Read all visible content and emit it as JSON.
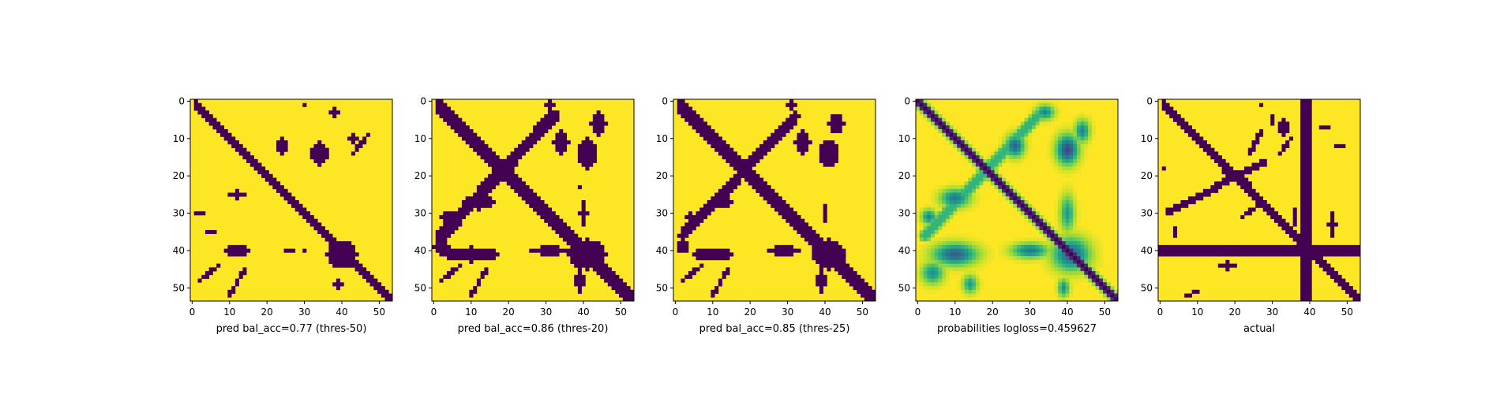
{
  "chart_data": [
    {
      "type": "heatmap",
      "xlabel": "pred bal_acc=0.77 (thres-50)",
      "xticks": [
        0,
        10,
        20,
        30,
        40,
        50
      ],
      "yticks": [
        0,
        10,
        20,
        30,
        40,
        50
      ],
      "xlim": [
        0,
        53
      ],
      "ylim": [
        53,
        0
      ],
      "size": 54,
      "colormap": "viridis",
      "binary": true,
      "features": {
        "diagonals": [
          {
            "type": "main",
            "start": 1,
            "end": 53,
            "width": 1.4
          }
        ],
        "blobs": [
          {
            "x": 34,
            "y": 14,
            "rx": 2.5,
            "ry": 3.0
          },
          {
            "x": 24,
            "y": 12,
            "rx": 1.5,
            "ry": 2.5
          },
          {
            "x": 38,
            "y": 3,
            "rx": 1.0,
            "ry": 1.5
          },
          {
            "x": 30,
            "y": 1,
            "rx": 0.6,
            "ry": 0.8
          },
          {
            "x": 43,
            "y": 10,
            "rx": 1.5,
            "ry": 1.2
          },
          {
            "x": 12,
            "y": 25,
            "rx": 2.0,
            "ry": 1.0
          },
          {
            "x": 2,
            "y": 30,
            "rx": 1.0,
            "ry": 0.8
          },
          {
            "x": 5,
            "y": 35,
            "rx": 1.0,
            "ry": 0.8
          },
          {
            "x": 12,
            "y": 40,
            "rx": 3.0,
            "ry": 1.5
          },
          {
            "x": 26,
            "y": 40,
            "rx": 1.5,
            "ry": 0.8
          },
          {
            "x": 30,
            "y": 40,
            "rx": 0.8,
            "ry": 0.8
          },
          {
            "x": 40,
            "y": 41,
            "rx": 4.0,
            "ry": 3.5
          },
          {
            "x": 39,
            "y": 49,
            "rx": 1.0,
            "ry": 1.0
          }
        ],
        "streaks": [
          {
            "x0": 47,
            "y0": 9,
            "x1": 43,
            "y1": 14,
            "w": 0.55
          },
          {
            "x0": 7,
            "y0": 44,
            "x1": 2,
            "y1": 48,
            "w": 0.55
          },
          {
            "x0": 14,
            "y0": 45,
            "x1": 10,
            "y1": 52,
            "w": 0.55
          }
        ]
      }
    },
    {
      "type": "heatmap",
      "xlabel": "pred bal_acc=0.86 (thres-20)",
      "xticks": [
        0,
        10,
        20,
        30,
        40,
        50
      ],
      "yticks": [
        0,
        10,
        20,
        30,
        40,
        50
      ],
      "xlim": [
        0,
        53
      ],
      "ylim": [
        53,
        0
      ],
      "size": 54,
      "colormap": "viridis",
      "binary": true,
      "features": {
        "diagonals": [
          {
            "type": "main",
            "start": 1,
            "end": 53,
            "width": 1.7
          },
          {
            "type": "anti",
            "x0": 2,
            "y0": 36,
            "x1": 32,
            "y1": 4,
            "width": 1.6
          }
        ],
        "blobs": [
          {
            "x": 41,
            "y": 14,
            "rx": 2.5,
            "ry": 4.0
          },
          {
            "x": 34,
            "y": 11,
            "rx": 2.0,
            "ry": 3.0
          },
          {
            "x": 44,
            "y": 6,
            "rx": 2.0,
            "ry": 3.0
          },
          {
            "x": 31,
            "y": 1,
            "rx": 1.2,
            "ry": 1.2
          },
          {
            "x": 12,
            "y": 27,
            "rx": 4.0,
            "ry": 2.0
          },
          {
            "x": 4,
            "y": 31,
            "rx": 2.0,
            "ry": 1.5
          },
          {
            "x": 10,
            "y": 41,
            "rx": 7.0,
            "ry": 2.0
          },
          {
            "x": 2,
            "y": 39,
            "rx": 2.0,
            "ry": 2.0
          },
          {
            "x": 31,
            "y": 40,
            "rx": 5.0,
            "ry": 1.2
          },
          {
            "x": 41,
            "y": 41,
            "rx": 5.0,
            "ry": 4.0
          },
          {
            "x": 39,
            "y": 48,
            "rx": 1.2,
            "ry": 3.0
          },
          {
            "x": 40,
            "y": 30,
            "rx": 1.0,
            "ry": 3.0
          },
          {
            "x": 39,
            "y": 23,
            "rx": 0.6,
            "ry": 0.6
          }
        ],
        "streaks": [
          {
            "x0": 14,
            "y0": 45,
            "x1": 10,
            "y1": 52,
            "w": 0.6
          },
          {
            "x0": 7,
            "y0": 44,
            "x1": 2,
            "y1": 48,
            "w": 0.6
          }
        ]
      }
    },
    {
      "type": "heatmap",
      "xlabel": "pred bal_acc=0.85 (thres-25)",
      "xticks": [
        0,
        10,
        20,
        30,
        40,
        50
      ],
      "yticks": [
        0,
        10,
        20,
        30,
        40,
        50
      ],
      "xlim": [
        0,
        53
      ],
      "ylim": [
        53,
        0
      ],
      "size": 54,
      "colormap": "viridis",
      "binary": true,
      "features": {
        "diagonals": [
          {
            "type": "main",
            "start": 1,
            "end": 53,
            "width": 1.6
          },
          {
            "type": "anti",
            "x0": 2,
            "y0": 36,
            "x1": 32,
            "y1": 4,
            "width": 1.4
          }
        ],
        "blobs": [
          {
            "x": 41,
            "y": 14,
            "rx": 2.5,
            "ry": 3.5
          },
          {
            "x": 34,
            "y": 11,
            "rx": 2.0,
            "ry": 3.0
          },
          {
            "x": 43,
            "y": 6,
            "rx": 2.0,
            "ry": 2.5
          },
          {
            "x": 31,
            "y": 1,
            "rx": 1.0,
            "ry": 1.0
          },
          {
            "x": 12,
            "y": 27,
            "rx": 3.5,
            "ry": 1.5
          },
          {
            "x": 4,
            "y": 31,
            "rx": 1.5,
            "ry": 1.2
          },
          {
            "x": 10,
            "y": 41,
            "rx": 5.0,
            "ry": 1.8
          },
          {
            "x": 2,
            "y": 39,
            "rx": 1.5,
            "ry": 1.5
          },
          {
            "x": 29,
            "y": 40,
            "rx": 4.0,
            "ry": 1.2
          },
          {
            "x": 41,
            "y": 41,
            "rx": 4.5,
            "ry": 4.0
          },
          {
            "x": 39,
            "y": 48,
            "rx": 1.2,
            "ry": 3.0
          },
          {
            "x": 40,
            "y": 30,
            "rx": 0.8,
            "ry": 2.5
          }
        ],
        "streaks": [
          {
            "x0": 14,
            "y0": 45,
            "x1": 10,
            "y1": 52,
            "w": 0.6
          },
          {
            "x0": 7,
            "y0": 44,
            "x1": 2,
            "y1": 48,
            "w": 0.6
          }
        ]
      }
    },
    {
      "type": "heatmap",
      "xlabel": "probabilities logloss=0.459627",
      "xticks": [
        0,
        10,
        20,
        30,
        40,
        50
      ],
      "yticks": [
        0,
        10,
        20,
        30,
        40,
        50
      ],
      "xlim": [
        0,
        53
      ],
      "ylim": [
        53,
        0
      ],
      "size": 54,
      "colormap": "viridis",
      "binary": false,
      "features": {
        "diagonals": [
          {
            "type": "main",
            "start": 0,
            "end": 53,
            "width": 1.2,
            "strength": 1.0
          },
          {
            "type": "anti",
            "x0": 2,
            "y0": 36,
            "x1": 32,
            "y1": 4,
            "width": 1.6,
            "strength": 0.35
          }
        ],
        "blobs": [
          {
            "x": 40,
            "y": 13,
            "rx": 3.0,
            "ry": 4.0,
            "strength": 0.8
          },
          {
            "x": 26,
            "y": 12,
            "rx": 2.5,
            "ry": 3.0,
            "strength": 0.7
          },
          {
            "x": 34,
            "y": 3,
            "rx": 2.5,
            "ry": 2.0,
            "strength": 0.55
          },
          {
            "x": 44,
            "y": 8,
            "rx": 2.0,
            "ry": 3.0,
            "strength": 0.55
          },
          {
            "x": 10,
            "y": 26,
            "rx": 4.0,
            "ry": 2.5,
            "strength": 0.6
          },
          {
            "x": 3,
            "y": 31,
            "rx": 2.0,
            "ry": 2.0,
            "strength": 0.55
          },
          {
            "x": 10,
            "y": 41,
            "rx": 6.0,
            "ry": 3.0,
            "strength": 0.7
          },
          {
            "x": 4,
            "y": 46,
            "rx": 3.0,
            "ry": 3.0,
            "strength": 0.5
          },
          {
            "x": 30,
            "y": 40,
            "rx": 5.0,
            "ry": 2.0,
            "strength": 0.6
          },
          {
            "x": 41,
            "y": 41,
            "rx": 5.0,
            "ry": 4.5,
            "strength": 0.7
          },
          {
            "x": 40,
            "y": 30,
            "rx": 2.0,
            "ry": 5.0,
            "strength": 0.45
          },
          {
            "x": 39,
            "y": 50,
            "rx": 1.5,
            "ry": 2.5,
            "strength": 0.5
          },
          {
            "x": 14,
            "y": 49,
            "rx": 2.0,
            "ry": 2.5,
            "strength": 0.45
          }
        ],
        "streaks": []
      }
    },
    {
      "type": "heatmap",
      "xlabel": "actual",
      "xticks": [
        0,
        10,
        20,
        30,
        40,
        50
      ],
      "yticks": [
        0,
        10,
        20,
        30,
        40,
        50
      ],
      "xlim": [
        0,
        53
      ],
      "ylim": [
        53,
        0
      ],
      "size": 54,
      "colormap": "viridis",
      "binary": true,
      "features": {
        "diagonals": [
          {
            "type": "main",
            "start": 1,
            "end": 53,
            "width": 1.2
          },
          {
            "type": "anti",
            "x0": 2,
            "y0": 30,
            "x1": 28,
            "y1": 16,
            "width": 0.9
          }
        ],
        "bands": [
          {
            "orientation": "vertical",
            "start": 38,
            "end": 40
          },
          {
            "orientation": "horizontal",
            "start": 39,
            "end": 41
          }
        ],
        "blobs": [
          {
            "x": 33,
            "y": 7,
            "rx": 1.5,
            "ry": 2.0
          },
          {
            "x": 30,
            "y": 5,
            "rx": 0.8,
            "ry": 1.5
          },
          {
            "x": 18,
            "y": 19,
            "rx": 1.5,
            "ry": 1.0
          },
          {
            "x": 1,
            "y": 18,
            "rx": 0.8,
            "ry": 0.8
          },
          {
            "x": 4,
            "y": 35,
            "rx": 0.8,
            "ry": 1.0
          },
          {
            "x": 18,
            "y": 44,
            "rx": 2.0,
            "ry": 1.0
          },
          {
            "x": 36,
            "y": 31,
            "rx": 0.6,
            "ry": 2.0
          },
          {
            "x": 46,
            "y": 33,
            "rx": 1.0,
            "ry": 3.0
          },
          {
            "x": 48,
            "y": 12,
            "rx": 1.5,
            "ry": 0.8
          },
          {
            "x": 44,
            "y": 7,
            "rx": 1.0,
            "ry": 0.6
          },
          {
            "x": 23,
            "y": 22,
            "rx": 1.0,
            "ry": 1.0
          },
          {
            "x": 27,
            "y": 1,
            "rx": 0.6,
            "ry": 0.8
          }
        ],
        "streaks": [
          {
            "x0": 27,
            "y0": 8,
            "x1": 24,
            "y1": 14,
            "w": 0.45
          },
          {
            "x0": 35,
            "y0": 10,
            "x1": 32,
            "y1": 14,
            "w": 0.45
          },
          {
            "x0": 10,
            "y0": 51,
            "x1": 7,
            "y1": 52,
            "w": 0.45
          },
          {
            "x0": 26,
            "y0": 28,
            "x1": 22,
            "y1": 31,
            "w": 0.45
          }
        ]
      }
    }
  ]
}
